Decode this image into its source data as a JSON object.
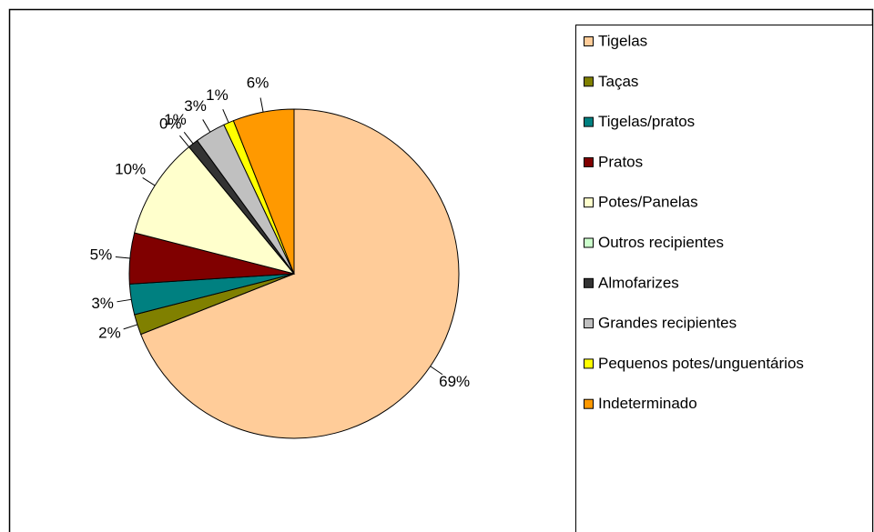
{
  "chart_data": {
    "type": "pie",
    "categories": [
      "Tigelas",
      "Taças",
      "Tigelas/pratos",
      "Pratos",
      "Potes/Panelas",
      "Outros recipientes",
      "Almofarizes",
      "Grandes recipientes",
      "Pequenos potes/unguentários",
      "Indeterminado"
    ],
    "values": [
      69,
      2,
      3,
      5,
      10,
      0,
      1,
      3,
      1,
      6
    ],
    "value_labels": [
      "69%",
      "2%",
      "3%",
      "5%",
      "10%",
      "0%",
      "1%",
      "3%",
      "1%",
      "6%"
    ],
    "colors": [
      "#FFCC99",
      "#808000",
      "#008080",
      "#800000",
      "#FFFFCC",
      "#CCFFCC",
      "#333333",
      "#C0C0C0",
      "#FFFF00",
      "#FF9900"
    ],
    "legend": "right"
  }
}
